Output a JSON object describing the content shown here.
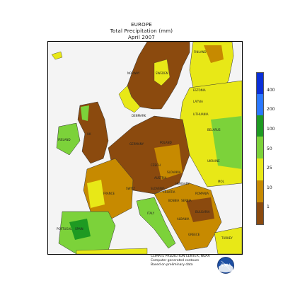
{
  "title_lines": [
    "EUROPE",
    "Total Precipitation (mm)",
    "April 2007"
  ],
  "legend": {
    "ticks": [
      "400",
      "200",
      "100",
      "50",
      "25",
      "10",
      "1"
    ],
    "colors": [
      "#0a2fd8",
      "#2b78ff",
      "#1e9a22",
      "#7cd23a",
      "#e8e817",
      "#c78a00",
      "#8b4a0e"
    ]
  },
  "credits": [
    "CLIMATE PREDICTION CENTER, NOAA",
    "Computer generated contours",
    "Based on preliminary data"
  ],
  "logo_text": "NOAA",
  "country_labels": [
    {
      "name": "FINLAND"
    },
    {
      "name": "NORWAY"
    },
    {
      "name": "SWEDEN"
    },
    {
      "name": "ESTONIA"
    },
    {
      "name": "LATVIA"
    },
    {
      "name": "LITHUANIA"
    },
    {
      "name": "BELARUS"
    },
    {
      "name": "IRELAND"
    },
    {
      "name": "UK"
    },
    {
      "name": "DENMARK"
    },
    {
      "name": "GERMANY"
    },
    {
      "name": "POLAND"
    },
    {
      "name": "UKRAINE"
    },
    {
      "name": "FRANCE"
    },
    {
      "name": "SWITZ"
    },
    {
      "name": "AUSTRIA"
    },
    {
      "name": "CZECH"
    },
    {
      "name": "HUNGARY"
    },
    {
      "name": "ROMANIA"
    },
    {
      "name": "MOL"
    },
    {
      "name": "ITALY"
    },
    {
      "name": "SPAIN"
    },
    {
      "name": "PORTUGAL"
    },
    {
      "name": "BULGARIA"
    },
    {
      "name": "SERBIA"
    },
    {
      "name": "GREECE"
    },
    {
      "name": "TURKEY"
    },
    {
      "name": "SLOVAKIA"
    },
    {
      "name": "CROATIA"
    },
    {
      "name": "BOSNIA"
    },
    {
      "name": "ALBANIA"
    },
    {
      "name": "SLOVENIA"
    }
  ]
}
